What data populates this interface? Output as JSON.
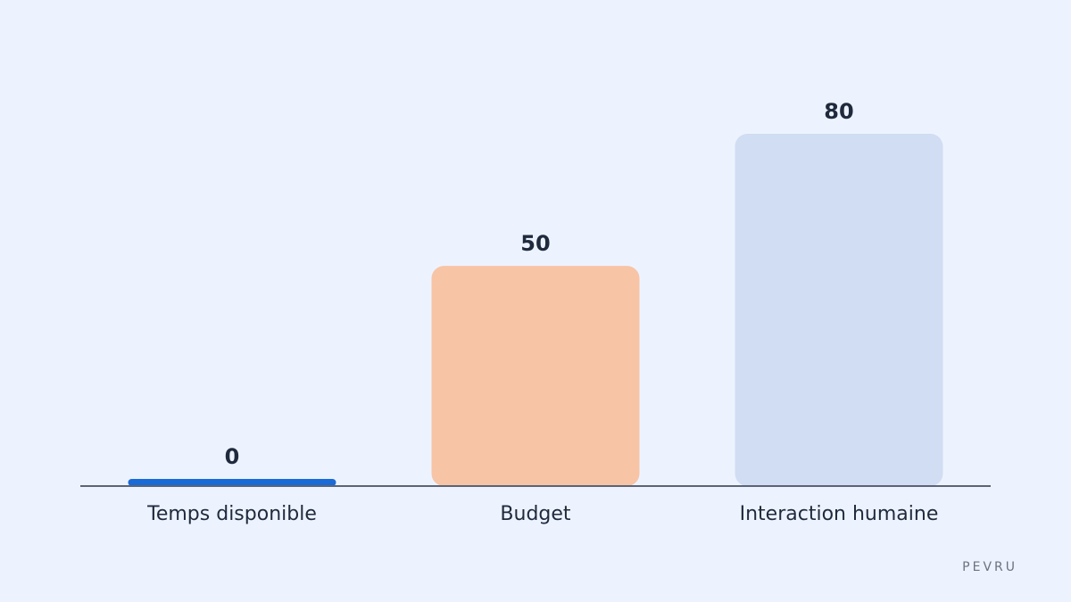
{
  "chart_data": {
    "type": "bar",
    "categories": [
      "Temps disponible",
      "Budget",
      "Interaction humaine"
    ],
    "values": [
      0,
      50,
      80
    ],
    "colors": [
      "#1a6ad8",
      "#f7c4a6",
      "#d0ddf3"
    ],
    "ylim": [
      0,
      80
    ],
    "watermark": "PEVRU"
  }
}
